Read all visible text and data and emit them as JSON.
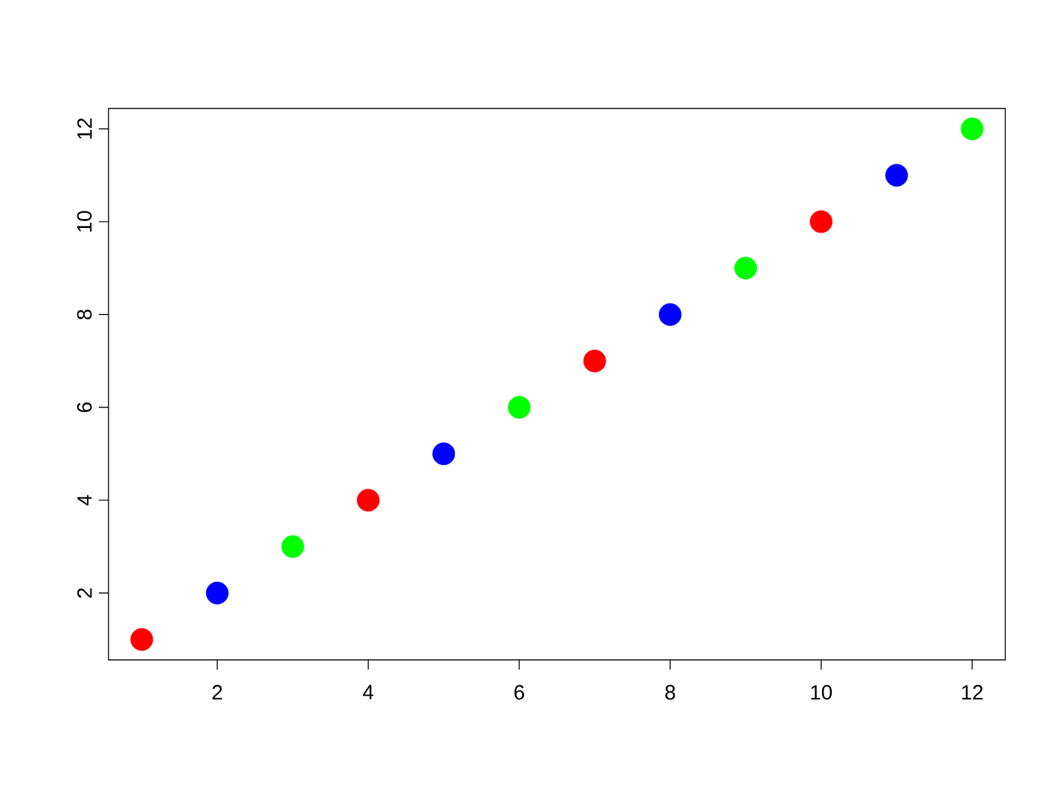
{
  "chart_data": {
    "type": "scatter",
    "x": [
      1,
      2,
      3,
      4,
      5,
      6,
      7,
      8,
      9,
      10,
      11,
      12
    ],
    "values": [
      1,
      2,
      3,
      4,
      5,
      6,
      7,
      8,
      9,
      10,
      11,
      12
    ],
    "colors": [
      "#ff0000",
      "#0000ff",
      "#00ff00",
      "#ff0000",
      "#0000ff",
      "#00ff00",
      "#ff0000",
      "#0000ff",
      "#00ff00",
      "#ff0000",
      "#0000ff",
      "#00ff00"
    ],
    "marker": "circle",
    "xlim": [
      0.56,
      12.44
    ],
    "ylim": [
      0.56,
      12.44
    ],
    "xticks": [
      2,
      4,
      6,
      8,
      10,
      12
    ],
    "yticks": [
      2,
      4,
      6,
      8,
      10,
      12
    ]
  }
}
